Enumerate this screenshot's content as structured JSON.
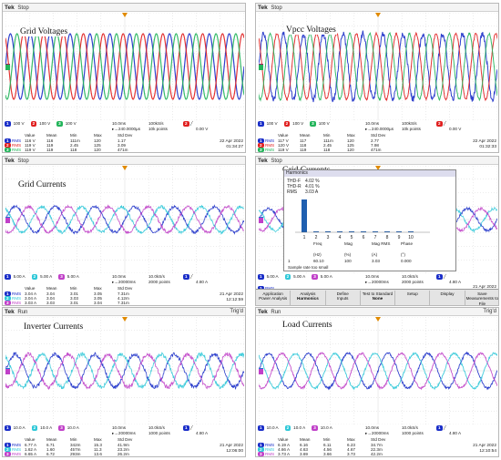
{
  "panels": [
    {
      "id": "p1",
      "title": "Grid Voltages",
      "header": {
        "brand": "Tek",
        "state": "Stop",
        "trig": ""
      },
      "channels": [
        {
          "num": "1",
          "scale": "100 V",
          "color": "#1a2ec8"
        },
        {
          "num": "2",
          "scale": "100 V",
          "color": "#e02020"
        },
        {
          "num": "3",
          "scale": "100 V",
          "color": "#22b45a"
        }
      ],
      "timebase": "10.0ms",
      "sample_rate": "100kS/s",
      "delay": "▸→240.0000µs",
      "record": "10k points",
      "trigger_ch": "2",
      "trigger_level": "0.00 V",
      "meas_headers": [
        "Value",
        "Mean",
        "Min",
        "Max",
        "Std Dev"
      ],
      "measurements": [
        {
          "ch": "1",
          "label": "RMS",
          "values": [
            "116 V",
            "116",
            "111m",
            "120",
            "1.17"
          ]
        },
        {
          "ch": "2",
          "label": "RMS",
          "values": [
            "119 V",
            "119",
            "2.45",
            "125",
            "3.09"
          ]
        },
        {
          "ch": "3",
          "label": "RMS",
          "values": [
            "119 V",
            "119",
            "118",
            "120",
            "471m"
          ]
        }
      ],
      "date": "22 Apr 2022",
      "time": "01:34:27"
    },
    {
      "id": "p2",
      "title": "Vpcc Voltages",
      "header": {
        "brand": "Tek",
        "state": "Stop",
        "trig": ""
      },
      "channels": [
        {
          "num": "1",
          "scale": "100 V",
          "color": "#1a2ec8"
        },
        {
          "num": "2",
          "scale": "100 V",
          "color": "#e02020"
        },
        {
          "num": "3",
          "scale": "100 V",
          "color": "#22b45a"
        }
      ],
      "timebase": "10.0ms",
      "sample_rate": "100kS/s",
      "delay": "▸→240.0000µs",
      "record": "10k points",
      "trigger_ch": "2",
      "trigger_level": "0.00 V",
      "meas_headers": [
        "Value",
        "Mean",
        "Min",
        "Max",
        "Std Dev"
      ],
      "measurements": [
        {
          "ch": "1",
          "label": "RMS",
          "values": [
            "117 V",
            "117",
            "111m",
            "120",
            "2.77"
          ]
        },
        {
          "ch": "2",
          "label": "RMS",
          "values": [
            "120 V",
            "118",
            "2.45",
            "125",
            "7.98"
          ]
        },
        {
          "ch": "3",
          "label": "RMS",
          "values": [
            "119 V",
            "119",
            "118",
            "120",
            "471m"
          ]
        }
      ],
      "date": "22 Apr 2022",
      "time": "01:32:33"
    },
    {
      "id": "p3",
      "title": "Grid Currents",
      "header": {
        "brand": "Tek",
        "state": "Stop",
        "trig": ""
      },
      "channels": [
        {
          "num": "1",
          "scale": "5.00 A",
          "color": "#1a2ec8"
        },
        {
          "num": "2",
          "scale": "5.00 A",
          "color": "#2fc8d8"
        },
        {
          "num": "3",
          "scale": "5.00 A",
          "color": "#c040c8"
        }
      ],
      "timebase": "10.0ms",
      "sample_rate": "10.0kS/s",
      "delay": "▸→20000ms",
      "record": "2000 points",
      "trigger_ch": "1",
      "trigger_level": "4.80 A",
      "meas_headers": [
        "Value",
        "Mean",
        "Min",
        "Max",
        "Std Dev"
      ],
      "measurements": [
        {
          "ch": "1",
          "label": "RMS",
          "values": [
            "3.04 A",
            "3.04",
            "3.01",
            "3.05",
            "7.31m"
          ]
        },
        {
          "ch": "2",
          "label": "RMS",
          "values": [
            "3.04 A",
            "3.04",
            "3.03",
            "3.05",
            "4.12m"
          ]
        },
        {
          "ch": "3",
          "label": "RMS",
          "values": [
            "3.03 A",
            "3.03",
            "3.01",
            "3.04",
            "7.31m"
          ]
        }
      ],
      "date": "21 Apr 2022",
      "time": "12:12:59"
    },
    {
      "id": "p4",
      "title": "Grid Currents",
      "header": {
        "brand": "Tek",
        "state": "Stop",
        "trig": ""
      },
      "channels": [
        {
          "num": "1",
          "scale": "5.00 A",
          "color": "#1a2ec8"
        },
        {
          "num": "2",
          "scale": "5.00 A",
          "color": "#2fc8d8"
        },
        {
          "num": "3",
          "scale": "5.00 A",
          "color": "#c040c8"
        }
      ],
      "timebase": "10.0ms",
      "sample_rate": "10.0kS/s",
      "delay": "▸→20000ms",
      "record": "2000 points",
      "trigger_ch": "1",
      "trigger_level": "4.80 A",
      "meas_headers": [
        "Value",
        "Mean",
        "Min",
        "Max",
        "Std Dev"
      ],
      "measurements": [
        {
          "ch": "1",
          "label": "RMS",
          "values": [
            "",
            "",
            "",
            "",
            ""
          ]
        },
        {
          "ch": "2",
          "label": "RMS",
          "values": [
            "",
            "",
            "",
            "",
            ""
          ]
        },
        {
          "ch": "3",
          "label": "RMS",
          "values": [
            "",
            "",
            "",
            "",
            ""
          ]
        }
      ],
      "date": "21 Apr 2022",
      "time": "12:12:43"
    },
    {
      "id": "p5",
      "title": "Inverter Currents",
      "header": {
        "brand": "Tek",
        "state": "Run",
        "trig": "Trig'd"
      },
      "channels": [
        {
          "num": "1",
          "scale": "10.0 A",
          "color": "#1a2ec8"
        },
        {
          "num": "2",
          "scale": "10.0 A",
          "color": "#2fc8d8"
        },
        {
          "num": "3",
          "scale": "10.0 A",
          "color": "#c040c8"
        }
      ],
      "timebase": "10.0ms",
      "sample_rate": "10.0kS/s",
      "delay": "▸→20000ms",
      "record": "1000 points",
      "trigger_ch": "1",
      "trigger_level": "4.80 A",
      "meas_headers": [
        "Value",
        "Mean",
        "Min",
        "Max",
        "Std Dev"
      ],
      "measurements": [
        {
          "ch": "1",
          "label": "RMS",
          "values": [
            "6.77 A",
            "6.71",
            "342m",
            "15.3",
            "41.9m"
          ]
        },
        {
          "ch": "2",
          "label": "RMS",
          "values": [
            "1.62 A",
            "1.60",
            "457m",
            "11.3",
            "23.2m"
          ]
        },
        {
          "ch": "3",
          "label": "RMS",
          "values": [
            "6.65 A",
            "6.72",
            "293m",
            "13.6",
            "26.2m"
          ]
        }
      ],
      "date": "21 Apr 2022",
      "time": "12:06:00"
    },
    {
      "id": "p6",
      "title": "Load Currents",
      "header": {
        "brand": "Tek",
        "state": "Run",
        "trig": "Trig'd"
      },
      "channels": [
        {
          "num": "1",
          "scale": "10.0 A",
          "color": "#1a2ec8"
        },
        {
          "num": "2",
          "scale": "10.0 A",
          "color": "#2fc8d8"
        },
        {
          "num": "3",
          "scale": "10.0 A",
          "color": "#c040c8"
        }
      ],
      "timebase": "10.0ms",
      "sample_rate": "10.0kS/s",
      "delay": "▸→20000ms",
      "record": "1000 points",
      "trigger_ch": "1",
      "trigger_level": "4.80 A",
      "meas_headers": [
        "Value",
        "Mean",
        "Min",
        "Max",
        "Std Dev"
      ],
      "measurements": [
        {
          "ch": "1",
          "label": "RMS",
          "values": [
            "6.19 A",
            "6.16",
            "6.11",
            "6.23",
            "34.7m"
          ]
        },
        {
          "ch": "2",
          "label": "RMS",
          "values": [
            "4.66 A",
            "4.63",
            "4.56",
            "4.67",
            "22.3m"
          ]
        },
        {
          "ch": "3",
          "label": "RMS",
          "values": [
            "3.73 A",
            "3.69",
            "3.66",
            "3.73",
            "42.2m"
          ]
        }
      ],
      "date": "21 Apr 2022",
      "time": "12:10:54"
    }
  ],
  "harmonics": {
    "title": "Harmonics",
    "lines": [
      {
        "label": "THD-F",
        "value": "4.02 %"
      },
      {
        "label": "THD-R",
        "value": "4.01 %"
      },
      {
        "label": "RMS",
        "value": "3.03 A"
      }
    ],
    "orders": [
      "1",
      "2",
      "3",
      "4",
      "5",
      "6",
      "7",
      "8",
      "9",
      "10"
    ],
    "table_headers": [
      "Freq",
      "Mag",
      "Mag RMS",
      "Phase"
    ],
    "table_units": [
      "(Hz)",
      "(%)",
      "(A)",
      "(°)"
    ],
    "table_row": [
      "1",
      "60.10",
      "100",
      "3.03",
      "0.000"
    ],
    "note": "Sample rate too small"
  },
  "menu": [
    {
      "line1": "Application",
      "line2": "Power Analysis"
    },
    {
      "line1": "Analysis",
      "line2": "Harmonics"
    },
    {
      "line1": "Define",
      "line2": "Inputs"
    },
    {
      "line1": "Test to Standard",
      "line2": "None"
    },
    {
      "line1": "Setup",
      "line2": ""
    },
    {
      "line1": "Display",
      "line2": ""
    },
    {
      "line1": "Save",
      "line2": "Measurements to File"
    }
  ]
}
